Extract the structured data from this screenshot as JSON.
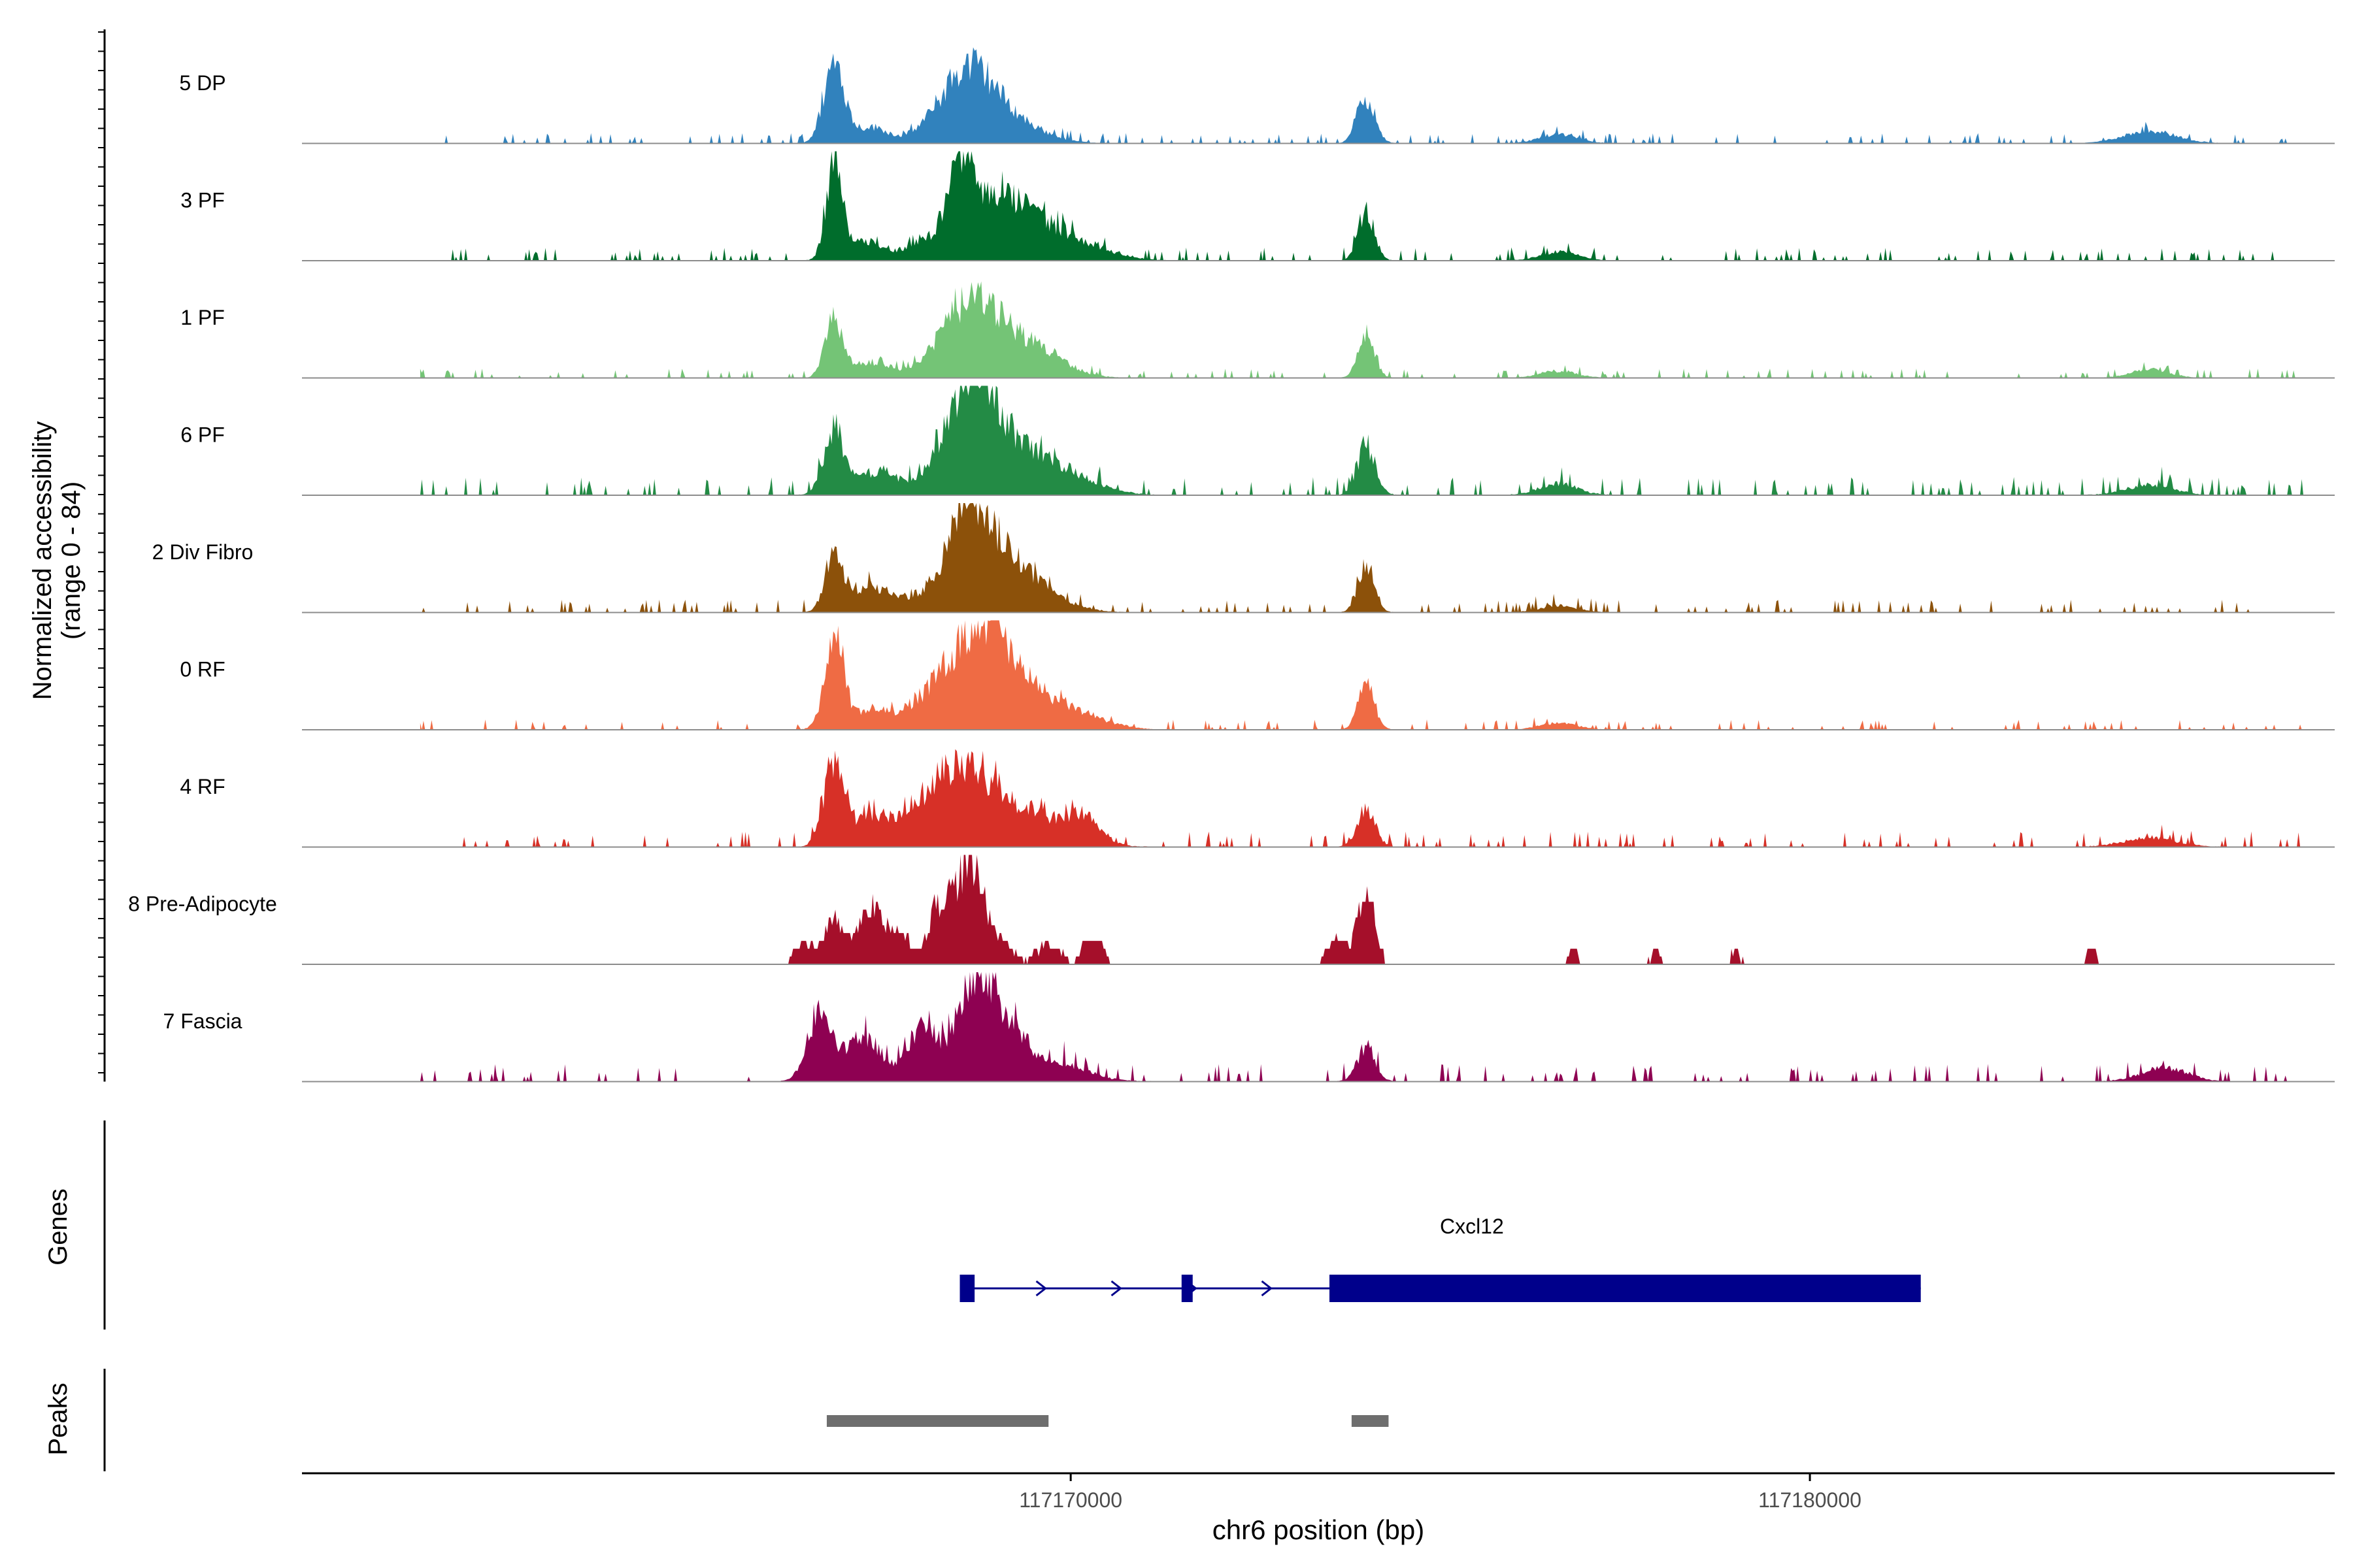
{
  "chart_data": {
    "type": "area",
    "title": "",
    "ylabel_line1": "Normalized accessibility",
    "ylabel_line2": "(range 0 - 84)",
    "ylim": [
      0,
      84
    ],
    "xlabel": "chr6 position (bp)",
    "xlim": [
      117159600,
      117187100
    ],
    "xticks": [
      {
        "value": 117170000,
        "label": "117170000"
      },
      {
        "value": 117180000,
        "label": "117180000"
      }
    ],
    "peak_positions": [
      117166800,
      117168600,
      117168900,
      117174000
    ],
    "series": [
      {
        "name": "5 DP",
        "color": "#3182bd",
        "peaks": [
          [
            117166800,
            70,
            140
          ],
          [
            117167300,
            14,
            220
          ],
          [
            117168400,
            28,
            360
          ],
          [
            117168700,
            40,
            320
          ],
          [
            117169200,
            18,
            420
          ],
          [
            117174000,
            40,
            120
          ],
          [
            117176600,
            8,
            250
          ],
          [
            117184600,
            11,
            350
          ]
        ],
        "noise": [
          117161200,
          117186700,
          2.0
        ]
      },
      {
        "name": "3 PF",
        "color": "#006d2c",
        "peaks": [
          [
            117166800,
            84,
            110
          ],
          [
            117167200,
            18,
            200
          ],
          [
            117168000,
            15,
            300
          ],
          [
            117168500,
            70,
            160
          ],
          [
            117168900,
            45,
            380
          ],
          [
            117169500,
            28,
            380
          ],
          [
            117170200,
            12,
            400
          ],
          [
            117174000,
            42,
            110
          ],
          [
            117176600,
            8,
            250
          ]
        ],
        "noise": [
          117161200,
          117186700,
          2.5
        ]
      },
      {
        "name": "1 PF",
        "color": "#74c476",
        "peaks": [
          [
            117166800,
            52,
            120
          ],
          [
            117167300,
            14,
            220
          ],
          [
            117168100,
            12,
            300
          ],
          [
            117168600,
            45,
            300
          ],
          [
            117169000,
            34,
            380
          ],
          [
            117169600,
            18,
            380
          ],
          [
            117174000,
            38,
            110
          ],
          [
            117176600,
            6,
            250
          ],
          [
            117184600,
            8,
            250
          ]
        ],
        "noise": [
          117161200,
          117186700,
          1.8
        ]
      },
      {
        "name": "6 PF",
        "color": "#238b45",
        "peaks": [
          [
            117166800,
            58,
            140
          ],
          [
            117167400,
            22,
            240
          ],
          [
            117168400,
            50,
            300
          ],
          [
            117168800,
            70,
            260
          ],
          [
            117169300,
            35,
            380
          ],
          [
            117170000,
            16,
            400
          ],
          [
            117174000,
            44,
            120
          ],
          [
            117176600,
            10,
            250
          ],
          [
            117184600,
            9,
            300
          ]
        ],
        "noise": [
          117161200,
          117186700,
          3.5
        ]
      },
      {
        "name": "2 Div Fibro",
        "color": "#8c510a",
        "peaks": [
          [
            117166800,
            55,
            120
          ],
          [
            117167300,
            22,
            240
          ],
          [
            117168000,
            14,
            300
          ],
          [
            117168600,
            84,
            260
          ],
          [
            117169100,
            40,
            300
          ],
          [
            117169600,
            16,
            380
          ],
          [
            117174000,
            42,
            110
          ],
          [
            117176600,
            6,
            250
          ]
        ],
        "noise": [
          117161200,
          117186700,
          2.5
        ]
      },
      {
        "name": "0 RF",
        "color": "#ef6b44",
        "peaks": [
          [
            117166800,
            76,
            130
          ],
          [
            117167300,
            16,
            240
          ],
          [
            117168000,
            20,
            300
          ],
          [
            117168500,
            48,
            300
          ],
          [
            117168900,
            62,
            280
          ],
          [
            117169400,
            32,
            380
          ],
          [
            117170100,
            12,
            400
          ],
          [
            117174000,
            40,
            110
          ],
          [
            117176600,
            6,
            250
          ]
        ],
        "noise": [
          117161200,
          117186700,
          2.0
        ]
      },
      {
        "name": "4 RF",
        "color": "#d73027",
        "peaks": [
          [
            117166800,
            74,
            140
          ],
          [
            117167300,
            25,
            240
          ],
          [
            117168000,
            32,
            300
          ],
          [
            117168500,
            52,
            300
          ],
          [
            117169000,
            36,
            380
          ],
          [
            117169800,
            20,
            400
          ],
          [
            117170200,
            16,
            200
          ],
          [
            117174000,
            34,
            120
          ],
          [
            117184600,
            8,
            350
          ]
        ],
        "noise": [
          117161200,
          117186700,
          3.0
        ]
      },
      {
        "name": "8 Pre-Adipocyte",
        "color": "#a50f2a",
        "peaks": [
          [
            117166400,
            20,
            140
          ],
          [
            117166800,
            40,
            120
          ],
          [
            117167300,
            52,
            180
          ],
          [
            117167700,
            25,
            140
          ],
          [
            117168200,
            45,
            140
          ],
          [
            117168600,
            84,
            200
          ],
          [
            117169000,
            20,
            220
          ],
          [
            117169700,
            18,
            160
          ],
          [
            117170300,
            25,
            140
          ],
          [
            117174000,
            62,
            120
          ],
          [
            117173600,
            20,
            140
          ],
          [
            117183800,
            14,
            80
          ],
          [
            117176800,
            14,
            80
          ],
          [
            117177900,
            12,
            80
          ],
          [
            117179000,
            12,
            80
          ]
        ],
        "noise": [
          117162900,
          117185600,
          0.0
        ]
      },
      {
        "name": "7 Fascia",
        "color": "#8e0152",
        "peaks": [
          [
            117166600,
            60,
            160
          ],
          [
            117167200,
            38,
            240
          ],
          [
            117168000,
            48,
            200
          ],
          [
            117168700,
            84,
            240
          ],
          [
            117169100,
            40,
            300
          ],
          [
            117169800,
            16,
            400
          ],
          [
            117174000,
            30,
            120
          ],
          [
            117184800,
            12,
            300
          ]
        ],
        "noise": [
          117161200,
          117186700,
          3.5
        ]
      }
    ],
    "genes": {
      "label": "Genes",
      "items": [
        {
          "name": "Cxcl12",
          "strand": "+",
          "start": 117168500,
          "end": 117181500,
          "exons": [
            [
              117168500,
              117168700
            ],
            [
              117171500,
              117171650
            ],
            [
              117173500,
              117181500
            ]
          ]
        }
      ]
    },
    "peaks_track": {
      "label": "Peaks",
      "regions": [
        [
          117166700,
          117169700
        ],
        [
          117173800,
          117174300
        ]
      ]
    }
  }
}
